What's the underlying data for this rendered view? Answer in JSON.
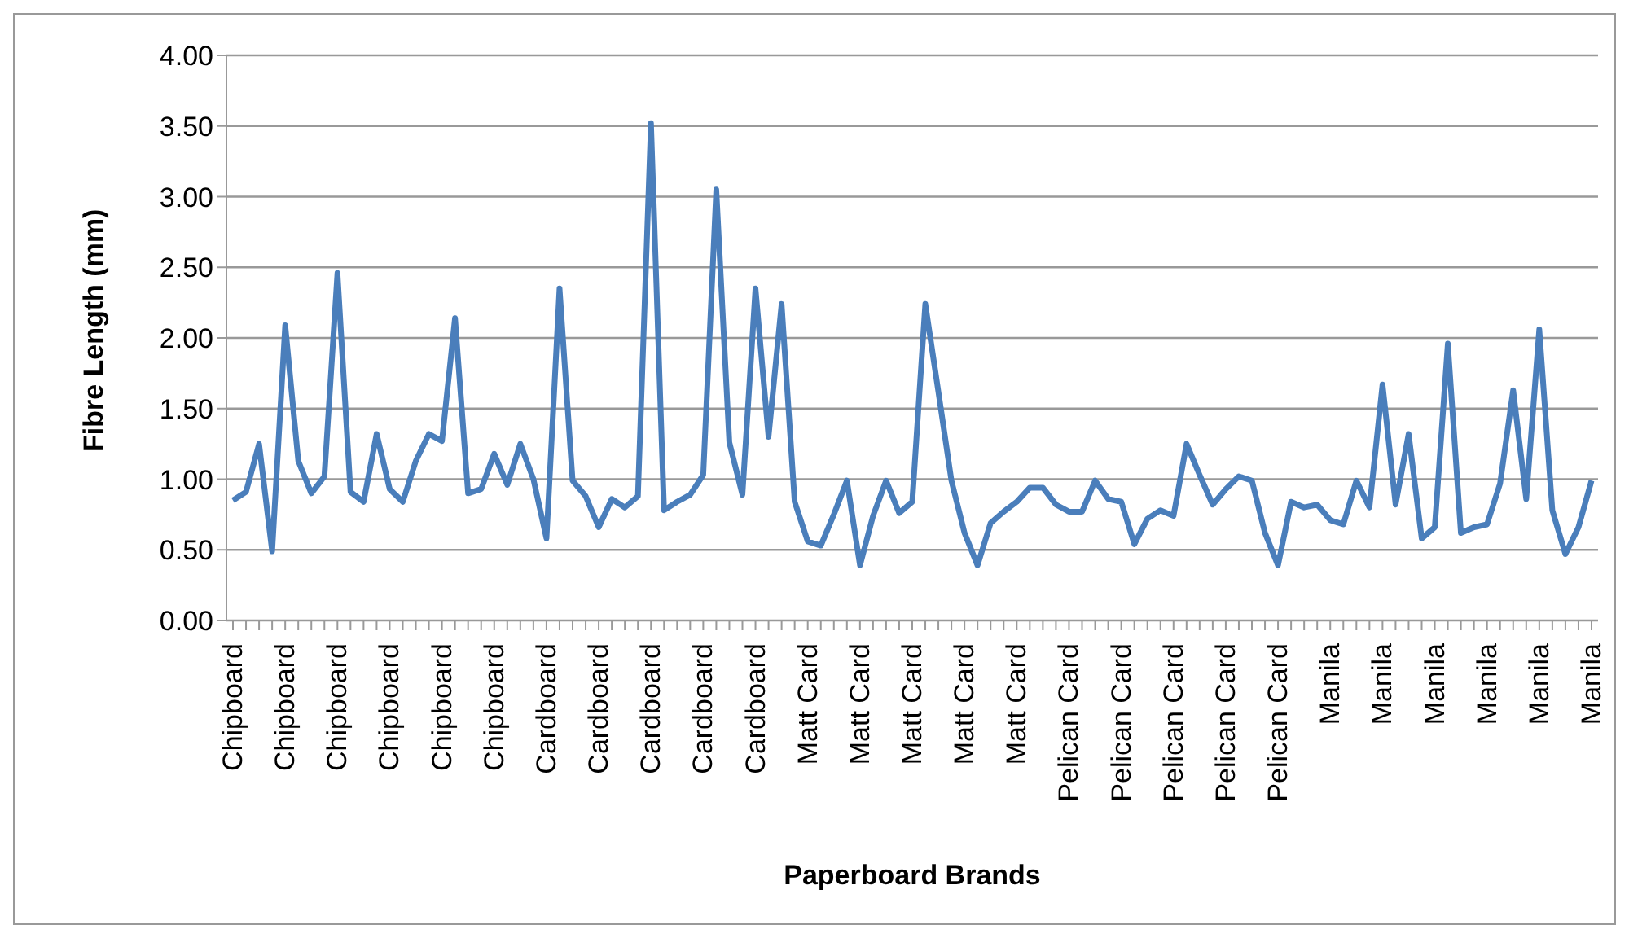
{
  "chart_data": {
    "type": "line",
    "xlabel": "Paperboard Brands",
    "ylabel": "Fibre Length (mm)",
    "categories": [
      "Chipboard",
      null,
      null,
      null,
      "Chipboard",
      null,
      null,
      null,
      "Chipboard",
      null,
      null,
      null,
      "Chipboard",
      null,
      null,
      null,
      "Chipboard",
      null,
      null,
      null,
      "Chipboard",
      null,
      null,
      null,
      "Cardboard",
      null,
      null,
      null,
      "Cardboard",
      null,
      null,
      null,
      "Cardboard",
      null,
      null,
      null,
      "Cardboard",
      null,
      null,
      null,
      "Cardboard",
      null,
      null,
      null,
      "Matt Card",
      null,
      null,
      null,
      "Matt Card",
      null,
      null,
      null,
      "Matt Card",
      null,
      null,
      null,
      "Matt Card",
      null,
      null,
      null,
      "Matt Card",
      null,
      null,
      null,
      "Pelican Card",
      null,
      null,
      null,
      "Pelican Card",
      null,
      null,
      null,
      "Pelican Card",
      null,
      null,
      null,
      "Pelican Card",
      null,
      null,
      null,
      "Pelican Card",
      null,
      null,
      null,
      "Manila",
      null,
      null,
      null,
      "Manila",
      null,
      null,
      null,
      "Manila",
      null,
      null,
      null,
      "Manila",
      null,
      null,
      null,
      "Manila",
      null,
      null,
      null,
      "Manila"
    ],
    "series": [
      {
        "color": "#4a7ebb",
        "values": [
          0.85,
          0.91,
          1.25,
          0.49,
          2.09,
          1.13,
          0.9,
          1.02,
          2.46,
          0.91,
          0.84,
          1.32,
          0.93,
          0.84,
          1.13,
          1.32,
          1.27,
          2.14,
          0.9,
          0.93,
          1.18,
          0.96,
          1.25,
          1.0,
          0.58,
          2.35,
          0.99,
          0.88,
          0.66,
          0.86,
          0.8,
          0.88,
          3.52,
          0.78,
          0.84,
          0.89,
          1.03,
          3.05,
          1.26,
          0.89,
          2.35,
          1.3,
          2.24,
          0.84,
          0.56,
          0.53,
          0.75,
          0.99,
          0.39,
          0.74,
          0.99,
          0.76,
          0.84,
          2.24,
          1.62,
          0.99,
          0.62,
          0.39,
          0.69,
          0.77,
          0.84,
          0.94,
          0.94,
          0.82,
          0.77,
          0.77,
          0.99,
          0.86,
          0.84,
          0.54,
          0.72,
          0.78,
          0.74,
          1.25,
          1.03,
          0.82,
          0.93,
          1.02,
          0.99,
          0.62,
          0.39,
          0.84,
          0.8,
          0.82,
          0.71,
          0.68,
          0.99,
          0.8,
          1.67,
          0.82,
          1.32,
          0.58,
          0.66,
          1.96,
          0.62,
          0.66,
          0.68,
          0.97,
          1.63,
          0.86,
          2.06,
          0.78,
          0.47,
          0.66,
          0.99
        ]
      }
    ],
    "ylim": [
      0,
      4
    ],
    "yticks": [
      {
        "value": 0,
        "label": "0.00"
      },
      {
        "value": 0.5,
        "label": "0.50"
      },
      {
        "value": 1,
        "label": "1.00"
      },
      {
        "value": 1.5,
        "label": "1.50"
      },
      {
        "value": 2,
        "label": "2.00"
      },
      {
        "value": 2.5,
        "label": "2.50"
      },
      {
        "value": 3,
        "label": "3.00"
      },
      {
        "value": 3.5,
        "label": "3.50"
      },
      {
        "value": 4,
        "label": "4.00"
      }
    ],
    "grid": "y",
    "marker": "none",
    "line_style": "solid"
  }
}
